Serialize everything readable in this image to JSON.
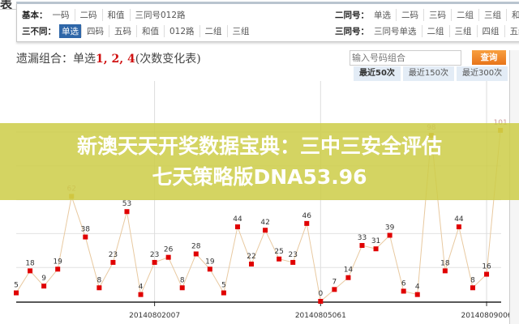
{
  "tab_label": "表",
  "nav": {
    "basic": {
      "label": "基本：",
      "items": [
        "一码",
        "二码",
        "和值",
        "三同号012路"
      ]
    },
    "three_diff": {
      "label": "三不同：",
      "items": [
        "单选",
        "四码",
        "五码",
        "和值",
        "012路",
        "二组",
        "三组"
      ],
      "selected": "单选"
    },
    "two_same": {
      "label": "二同号：",
      "items": [
        "单选",
        "二码",
        "三码",
        "二组",
        "三组",
        "和值"
      ]
    },
    "three_same": {
      "label": "三同号：",
      "items": [
        "三同号单选",
        "二组",
        "三组",
        "四组",
        "五组"
      ]
    }
  },
  "title": {
    "prefix": "遗漏组合：单选",
    "numbers": "1, 2, 4",
    "suffix": "(次数变化表)"
  },
  "search": {
    "placeholder": "输入号码组合",
    "button": "查询"
  },
  "range_tabs": [
    {
      "label": "最近50次",
      "active": true
    },
    {
      "label": "最近150次",
      "active": false
    },
    {
      "label": "最近300次",
      "active": false
    }
  ],
  "banner": {
    "line1": "新澳天天开奖数据宝典：三中三安全评估",
    "line2": "七天策略版DNA53.96"
  },
  "chart_data": {
    "type": "line",
    "values": [
      5,
      18,
      9,
      19,
      62,
      38,
      8,
      23,
      53,
      4,
      23,
      26,
      8,
      28,
      19,
      5,
      44,
      22,
      42,
      25,
      23,
      46,
      0,
      7,
      14,
      33,
      31,
      39,
      6,
      4,
      98,
      18,
      44,
      8,
      16,
      101
    ],
    "highlight_threshold": 60,
    "x_tick_labels": [
      {
        "index": 10,
        "label": "20140802007"
      },
      {
        "index": 22,
        "label": "20140805061"
      },
      {
        "index": 34,
        "label": "20140809006"
      }
    ],
    "gridlines": [
      20,
      40,
      60,
      80,
      100
    ],
    "colors": {
      "line": "#e8c9a0",
      "point": "#e00000",
      "highlight_point": "#e0a020"
    }
  }
}
